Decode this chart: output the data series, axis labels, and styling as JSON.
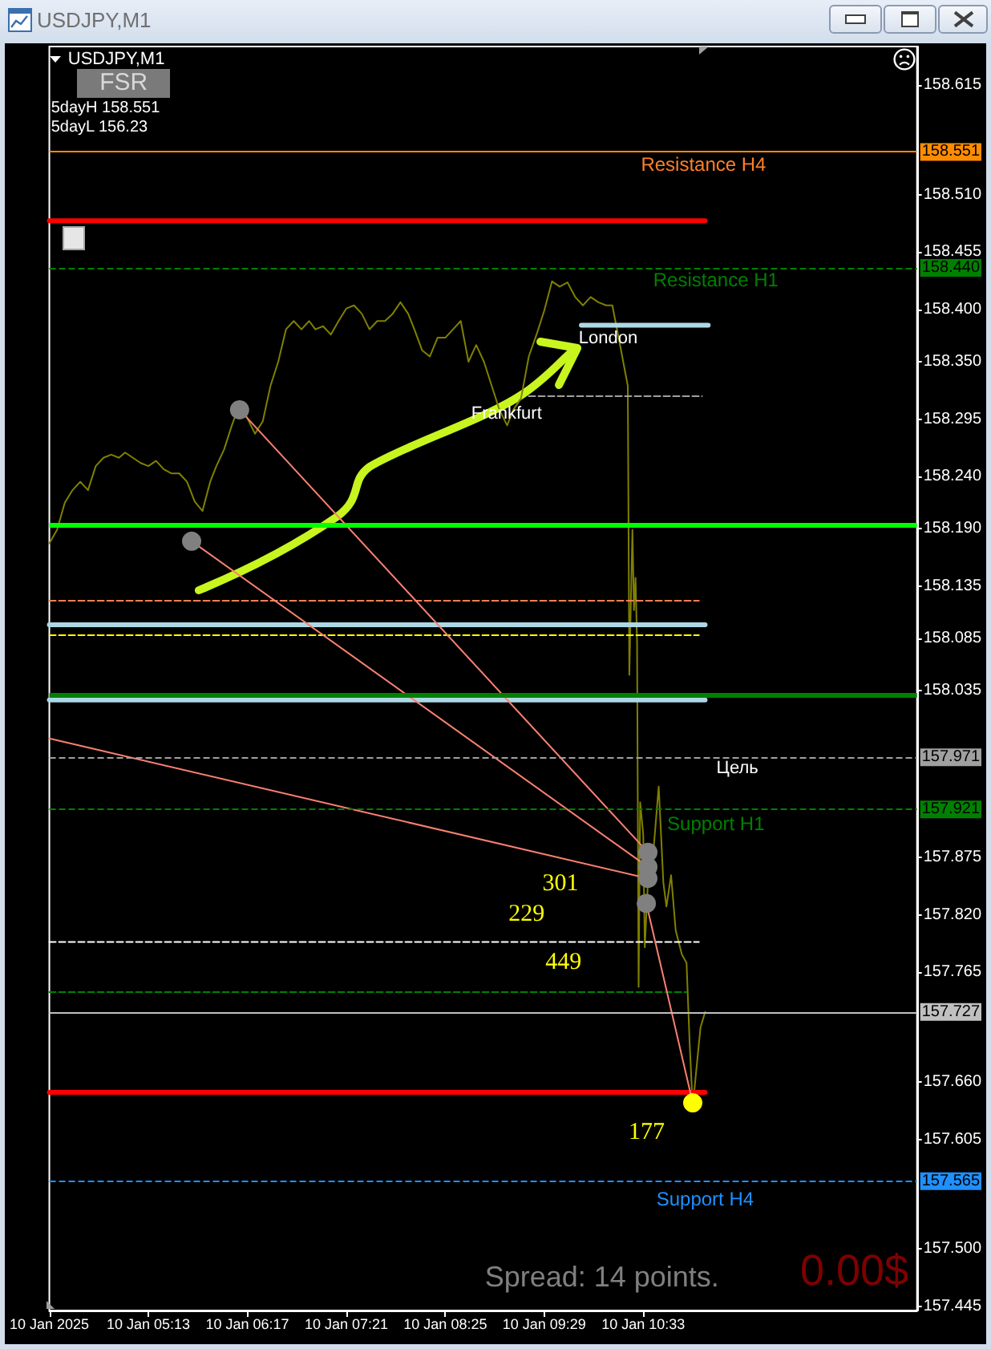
{
  "chart_data": {
    "type": "line",
    "title": "USDJPY,M1",
    "subtitle": "USDJPY,M1",
    "marker": "none",
    "xlim": [
      "2025-01-10T04:09",
      "2025-01-10T13:30"
    ],
    "ylim": [
      157.441,
      158.652
    ],
    "xticks": [
      {
        "value": "2025-01-10T04:09",
        "label": "10 Jan 2025"
      },
      {
        "value": "2025-01-10T05:13",
        "label": "10 Jan 05:13"
      },
      {
        "value": "2025-01-10T06:17",
        "label": "10 Jan 06:17"
      },
      {
        "value": "2025-01-10T07:21",
        "label": "10 Jan 07:21"
      },
      {
        "value": "2025-01-10T08:25",
        "label": "10 Jan 08:25"
      },
      {
        "value": "2025-01-10T09:29",
        "label": "10 Jan 09:29"
      },
      {
        "value": "2025-01-10T10:33",
        "label": "10 Jan 10:33"
      }
    ],
    "yticks": [
      158.615,
      {
        "value": 158.51,
        "label": "158.510"
      },
      158.455,
      {
        "value": 158.4,
        "label": "158.400"
      },
      {
        "value": 158.35,
        "label": "158.350"
      },
      158.295,
      {
        "value": 158.24,
        "label": "158.240"
      },
      {
        "value": 158.19,
        "label": "158.190"
      },
      158.135,
      158.085,
      158.035,
      157.875,
      {
        "value": 157.82,
        "label": "157.820"
      },
      157.765,
      {
        "value": 157.66,
        "label": "157.660"
      },
      157.605,
      {
        "value": 157.5,
        "label": "157.500"
      },
      157.445
    ],
    "series": [
      {
        "color": "#808000",
        "x": [
          "2025-01-10T04:09",
          "2025-01-10T04:14",
          "2025-01-10T04:19",
          "2025-01-10T04:24",
          "2025-01-10T04:29",
          "2025-01-10T04:34",
          "2025-01-10T04:39",
          "2025-01-10T04:44",
          "2025-01-10T04:49",
          "2025-01-10T04:54",
          "2025-01-10T04:58",
          "2025-01-10T05:03",
          "2025-01-10T05:08",
          "2025-01-10T05:13",
          "2025-01-10T05:18",
          "2025-01-10T05:23",
          "2025-01-10T05:28",
          "2025-01-10T05:33",
          "2025-01-10T05:38",
          "2025-01-10T05:43",
          "2025-01-10T05:48",
          "2025-01-10T05:53",
          "2025-01-10T05:57",
          "2025-01-10T06:02",
          "2025-01-10T06:07",
          "2025-01-10T06:12",
          "2025-01-10T06:17",
          "2025-01-10T06:22",
          "2025-01-10T06:27",
          "2025-01-10T06:32",
          "2025-01-10T06:37",
          "2025-01-10T06:42",
          "2025-01-10T06:47",
          "2025-01-10T06:52",
          "2025-01-10T06:57",
          "2025-01-10T07:01",
          "2025-01-10T07:06",
          "2025-01-10T07:11",
          "2025-01-10T07:16",
          "2025-01-10T07:21",
          "2025-01-10T07:26",
          "2025-01-10T07:31",
          "2025-01-10T07:36",
          "2025-01-10T07:41",
          "2025-01-10T07:46",
          "2025-01-10T07:51",
          "2025-01-10T07:56",
          "2025-01-10T08:01",
          "2025-01-10T08:05",
          "2025-01-10T08:10",
          "2025-01-10T08:15",
          "2025-01-10T08:20",
          "2025-01-10T08:25",
          "2025-01-10T08:30",
          "2025-01-10T08:35",
          "2025-01-10T08:40",
          "2025-01-10T08:45",
          "2025-01-10T08:50",
          "2025-01-10T08:55",
          "2025-01-10T09:00",
          "2025-01-10T09:05",
          "2025-01-10T09:09",
          "2025-01-10T09:14",
          "2025-01-10T09:19",
          "2025-01-10T09:24",
          "2025-01-10T09:29",
          "2025-01-10T09:34",
          "2025-01-10T09:39",
          "2025-01-10T09:44",
          "2025-01-10T09:49",
          "2025-01-10T09:54",
          "2025-01-10T09:59",
          "2025-01-10T10:04",
          "2025-01-10T10:09",
          "2025-01-10T10:13",
          "2025-01-10T10:18",
          "2025-01-10T10:23",
          "2025-01-10T10:24",
          "2025-01-10T10:26",
          "2025-01-10T10:27",
          "2025-01-10T10:28",
          "2025-01-10T10:29",
          "2025-01-10T10:30",
          "2025-01-10T10:31",
          "2025-01-10T10:33",
          "2025-01-10T10:34",
          "2025-01-10T10:36",
          "2025-01-10T10:38",
          "2025-01-10T10:40",
          "2025-01-10T10:43",
          "2025-01-10T10:46",
          "2025-01-10T10:48",
          "2025-01-10T10:51",
          "2025-01-10T10:54",
          "2025-01-10T10:58",
          "2025-01-10T11:01",
          "2025-01-10T11:03",
          "2025-01-10T11:05",
          "2025-01-10T11:08",
          "2025-01-10T11:10",
          "2025-01-10T11:13"
        ],
        "values": [
          158.176,
          158.189,
          158.215,
          158.227,
          158.235,
          158.227,
          158.25,
          158.258,
          158.261,
          158.258,
          158.263,
          158.258,
          158.253,
          158.25,
          158.255,
          158.247,
          158.243,
          158.243,
          158.235,
          158.216,
          158.207,
          158.235,
          158.25,
          158.266,
          158.289,
          158.309,
          158.296,
          158.281,
          158.293,
          158.327,
          158.35,
          158.381,
          158.389,
          158.381,
          158.389,
          158.381,
          158.384,
          158.376,
          158.389,
          158.401,
          158.404,
          158.396,
          158.381,
          158.389,
          158.389,
          158.396,
          158.407,
          158.396,
          158.381,
          158.361,
          158.355,
          158.373,
          158.373,
          158.381,
          158.389,
          158.35,
          158.366,
          158.35,
          158.327,
          158.304,
          158.289,
          158.304,
          158.315,
          158.355,
          158.376,
          158.399,
          158.427,
          158.422,
          158.426,
          158.412,
          158.404,
          158.412,
          158.407,
          158.404,
          158.404,
          158.366,
          158.327,
          158.05,
          158.189,
          158.112,
          158.143,
          158.081,
          157.751,
          157.928,
          157.897,
          157.789,
          157.851,
          157.858,
          157.889,
          157.943,
          157.851,
          157.828,
          157.858,
          157.805,
          157.782,
          157.774,
          157.697,
          157.636,
          157.682,
          157.712,
          157.727
        ]
      },
      {
        "color": "#ff0000",
        "line_style": "solid",
        "x": [
          "2025-01-10T04:09",
          "2025-01-10T11:13"
        ],
        "values": [
          158.485,
          158.485
        ]
      },
      {
        "color": "#add8e6",
        "line_style": "solid",
        "x": [
          "2025-01-10T09:53",
          "2025-01-10T11:15"
        ],
        "values": [
          158.385,
          158.385
        ]
      },
      {
        "color": "#a0a0a0",
        "line_style": "dashed",
        "x": [
          "2025-01-10T09:19",
          "2025-01-10T11:11"
        ],
        "values": [
          158.317,
          158.317
        ]
      },
      {
        "color": "#ff7f50",
        "line_style": "dashed",
        "x": [
          "2025-01-10T04:09",
          "2025-01-10T11:09"
        ],
        "values": [
          158.121,
          158.121
        ]
      },
      {
        "color": "#add8e6",
        "line_style": "solid",
        "x": [
          "2025-01-10T04:09",
          "2025-01-10T11:13"
        ],
        "values": [
          158.098,
          158.098
        ]
      },
      {
        "color": "#ffff00",
        "line_style": "dashed",
        "x": [
          "2025-01-10T04:09",
          "2025-01-10T11:09"
        ],
        "values": [
          158.088,
          158.088
        ]
      },
      {
        "color": "#add8e6",
        "line_style": "solid",
        "x": [
          "2025-01-10T04:09",
          "2025-01-10T11:13"
        ],
        "values": [
          158.026,
          158.026
        ]
      },
      {
        "color": "#ffffff",
        "line_style": "dashed",
        "x": [
          "2025-01-10T04:09",
          "2025-01-10T11:09"
        ],
        "values": [
          157.794,
          157.794
        ]
      },
      {
        "color": "#008000",
        "line_style": "dashed",
        "x": [
          "2025-01-10T04:09",
          "2025-01-10T11:01"
        ],
        "values": [
          157.746,
          157.746
        ]
      },
      {
        "color": "#ff0000",
        "line_style": "solid",
        "x": [
          "2025-01-10T04:09",
          "2025-01-10T11:13"
        ],
        "values": [
          157.65,
          157.65
        ]
      },
      {
        "color": "#fa8072",
        "line_style": "solid",
        "x": [
          "2025-01-10T06:12",
          "2025-01-10T10:36"
        ],
        "values": [
          158.304,
          157.88
        ]
      },
      {
        "color": "#fa8072",
        "line_style": "solid",
        "x": [
          "2025-01-10T05:41",
          "2025-01-10T10:36"
        ],
        "values": [
          158.178,
          157.866
        ]
      },
      {
        "color": "#fa8072",
        "line_style": "solid",
        "x": [
          "2025-01-10T04:09",
          "2025-01-10T10:36"
        ],
        "values": [
          157.989,
          157.855
        ]
      },
      {
        "color": "#fa8072",
        "line_style": "solid",
        "x": [
          "2025-01-10T10:35",
          "2025-01-10T11:05"
        ],
        "values": [
          157.831,
          157.64
        ]
      },
      {
        "type": "scatter",
        "color": "#808080",
        "marker": "circle",
        "x": [
          "2025-01-10T05:41",
          "2025-01-10T06:12",
          "2025-01-10T10:35",
          "2025-01-10T10:36",
          "2025-01-10T10:36",
          "2025-01-10T10:36"
        ],
        "values": [
          158.178,
          158.304,
          157.831,
          157.88,
          157.866,
          157.855
        ]
      },
      {
        "type": "scatter",
        "color": "#ffff00",
        "marker": "circle",
        "x": [
          "2025-01-10T11:05"
        ],
        "values": [
          157.64
        ]
      }
    ],
    "ref_lines": [
      {
        "axis": "y",
        "value": 158.551,
        "label": "158.551",
        "color": "#ff8c00",
        "line_style": "solid"
      },
      {
        "axis": "y",
        "value": 158.44,
        "label": "158.440",
        "color": "#008000",
        "line_style": "dashed"
      },
      {
        "axis": "y",
        "value": 158.193,
        "color": "#00ff00",
        "line_style": "solid"
      },
      {
        "axis": "y",
        "value": 158.03,
        "color": "#008000",
        "line_style": "solid"
      },
      {
        "axis": "y",
        "value": 157.971,
        "label": "157.971",
        "color": "#a0a0a0",
        "line_style": "dashed"
      },
      {
        "axis": "y",
        "value": 157.921,
        "label": "157.921",
        "color": "#008000",
        "line_style": "dashed"
      },
      {
        "axis": "y",
        "value": 157.727,
        "label": "157.727",
        "color": "#c0c0c0",
        "line_style": "solid"
      },
      {
        "axis": "y",
        "value": 157.565,
        "label": "157.565",
        "color": "#1e90ff",
        "line_style": "dashed"
      }
    ],
    "annotations": [
      "FSR",
      "5dayH 158.551",
      "5dayL 156.23",
      "Spread: 14 points.",
      "0.00$",
      "Resistance H4",
      "Resistance H1",
      "London",
      "Frankfurt",
      "Цель",
      "Support H1",
      "301",
      "229",
      "449",
      "177",
      "Support H4"
    ]
  }
}
